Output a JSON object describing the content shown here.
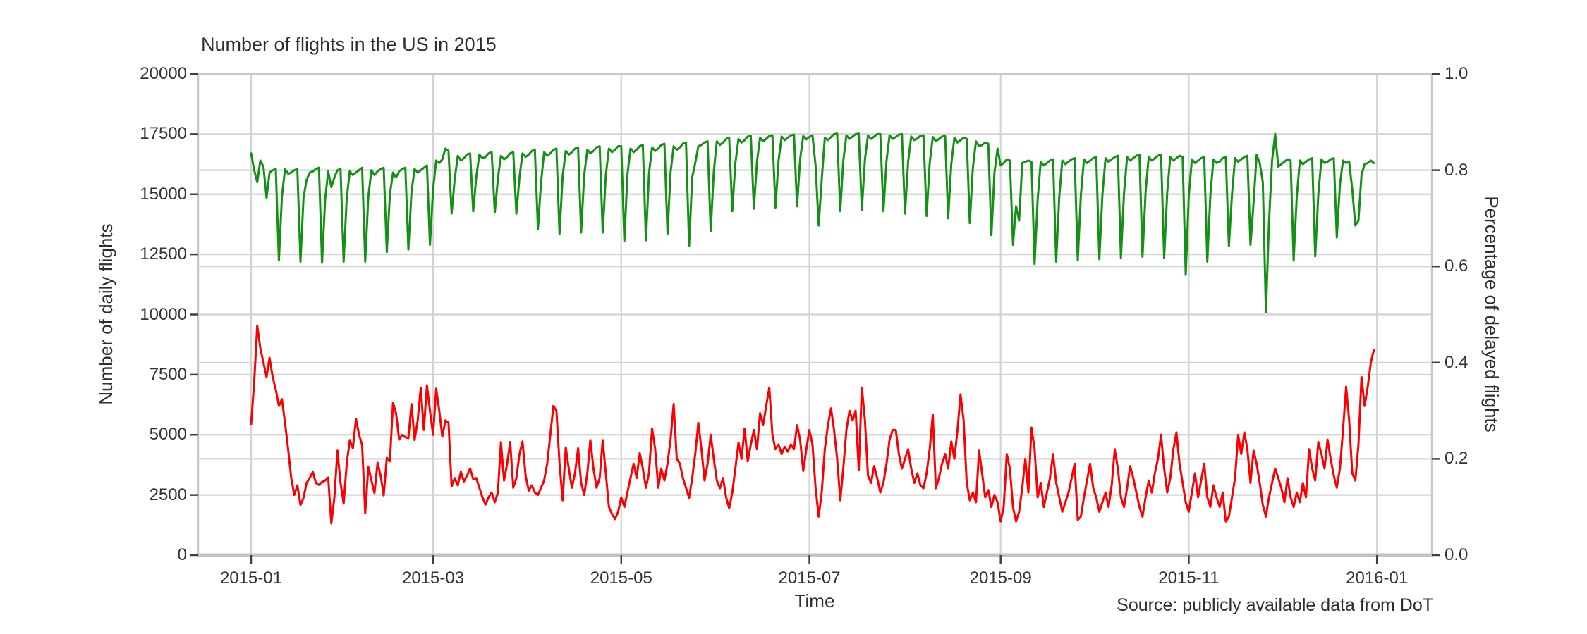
{
  "figure": {
    "title": "Number of flights in the US in 2015",
    "x_axis_label": "Time",
    "y_axis_left_label": "Number of daily flights",
    "y_axis_right_label": "Percentage of delayed flights",
    "source_note": "Source: publicly available data from DoT"
  },
  "colors": {
    "flights_line": "#149114",
    "delays_line": "#fb0000",
    "grid": "#d3d3d3",
    "spine": "#c8c8c8",
    "bottom_spine": "#c2c2c2",
    "tick_mark": "#404040",
    "text": "#2e2e2e"
  },
  "chart_data": {
    "type": "line",
    "title": "Number of flights in the US in 2015",
    "xlabel": "Time",
    "ylabel_left": "Number of daily flights",
    "ylabel_right": "Percentage of delayed flights",
    "x_unit": "day of 2015 (Jan 1 = day 0, daily samples)",
    "grid": true,
    "legend": "none",
    "ylim_left": [
      0,
      20000
    ],
    "ylim_right": [
      0.0,
      1.0
    ],
    "y_left_ticks": [
      0,
      2500,
      5000,
      7500,
      10000,
      12500,
      15000,
      17500,
      20000
    ],
    "y_right_ticks": [
      "0.0",
      "0.2",
      "0.4",
      "0.6",
      "0.8",
      "1.0"
    ],
    "x_ticks": [
      {
        "label": "2015-01",
        "day": 0
      },
      {
        "label": "2015-03",
        "day": 59
      },
      {
        "label": "2015-05",
        "day": 120
      },
      {
        "label": "2015-07",
        "day": 181
      },
      {
        "label": "2015-09",
        "day": 243
      },
      {
        "label": "2015-11",
        "day": 304
      },
      {
        "label": "2016-01",
        "day": 365
      }
    ],
    "series": [
      {
        "name": "Number of daily flights",
        "axis": "left",
        "color": "#149114",
        "values": [
          16700,
          16000,
          15500,
          16400,
          16150,
          14850,
          15900,
          16000,
          16050,
          12250,
          14900,
          16050,
          15850,
          15900,
          16000,
          16050,
          12200,
          14850,
          15600,
          15900,
          15950,
          16050,
          16100,
          12150,
          14800,
          15950,
          15300,
          15700,
          16000,
          16050,
          12200,
          14850,
          15950,
          15800,
          15900,
          16000,
          16100,
          12200,
          14900,
          16000,
          15800,
          15950,
          16050,
          16100,
          12600,
          15000,
          15900,
          15700,
          15950,
          16050,
          16100,
          12700,
          15100,
          16050,
          15900,
          16000,
          16100,
          16200,
          12900,
          15200,
          16400,
          16300,
          16450,
          16900,
          16800,
          14200,
          15600,
          16600,
          16400,
          16500,
          16650,
          16700,
          14290,
          15700,
          16650,
          16500,
          16550,
          16700,
          16750,
          14240,
          15650,
          16600,
          16450,
          16550,
          16700,
          16750,
          14190,
          15700,
          16700,
          16550,
          16650,
          16800,
          16850,
          13560,
          15500,
          16750,
          16600,
          16700,
          16850,
          16900,
          13360,
          15750,
          16800,
          16650,
          16750,
          16900,
          16950,
          13410,
          15800,
          16850,
          16700,
          16800,
          16950,
          17000,
          13410,
          15800,
          16900,
          16750,
          16850,
          17000,
          17000,
          13060,
          15800,
          16900,
          16750,
          16850,
          17000,
          17050,
          13090,
          15850,
          16950,
          16800,
          16900,
          17050,
          17100,
          13360,
          15900,
          17000,
          16850,
          16950,
          17100,
          17150,
          12870,
          15700,
          16300,
          17000,
          17050,
          17150,
          17200,
          13460,
          15950,
          17200,
          17050,
          17150,
          17300,
          17350,
          14300,
          16300,
          17300,
          17150,
          17250,
          17400,
          17420,
          14400,
          16350,
          17350,
          17200,
          17300,
          17430,
          17450,
          14450,
          16400,
          17400,
          17250,
          17350,
          17450,
          17480,
          14500,
          16450,
          17420,
          17280,
          17380,
          17450,
          16200,
          13700,
          15600,
          17350,
          17250,
          17380,
          17500,
          17520,
          14300,
          16400,
          17450,
          17300,
          17400,
          17500,
          17520,
          14350,
          16450,
          17450,
          17300,
          17400,
          17500,
          17500,
          14300,
          16400,
          17450,
          17300,
          17380,
          17480,
          17500,
          14200,
          16350,
          17400,
          17250,
          17320,
          17430,
          17450,
          14100,
          16300,
          17380,
          17200,
          17300,
          17400,
          17420,
          14000,
          16250,
          17350,
          17150,
          17250,
          17350,
          17300,
          13800,
          16100,
          17200,
          17000,
          17050,
          17150,
          17100,
          13300,
          15900,
          16900,
          16200,
          16300,
          16450,
          16400,
          12900,
          14500,
          13900,
          16300,
          16350,
          16400,
          16350,
          12100,
          14800,
          16350,
          16200,
          16300,
          16400,
          16450,
          12200,
          14900,
          16400,
          16250,
          16350,
          16450,
          16500,
          12250,
          14950,
          16450,
          16300,
          16400,
          16500,
          16550,
          12300,
          15000,
          16500,
          16350,
          16450,
          16550,
          16600,
          12350,
          15050,
          16550,
          16400,
          16500,
          16600,
          16650,
          12400,
          15100,
          16550,
          16400,
          16500,
          16600,
          16650,
          12350,
          15050,
          16550,
          16400,
          16500,
          16600,
          16550,
          11650,
          14900,
          16450,
          16300,
          16400,
          16500,
          16550,
          12200,
          14950,
          16450,
          16300,
          16350,
          16500,
          16550,
          12850,
          15000,
          16500,
          16350,
          16450,
          16550,
          16600,
          12900,
          14650,
          16630,
          16300,
          15500,
          10100,
          13800,
          16400,
          17510,
          16150,
          16250,
          16350,
          16450,
          16400,
          12240,
          14900,
          16400,
          16250,
          16350,
          16450,
          16500,
          12420,
          15000,
          16450,
          16300,
          16350,
          16450,
          16500,
          13200,
          15400,
          16400,
          16300,
          16350,
          15200,
          13700,
          13900,
          15800,
          16250,
          16300,
          16400,
          16300
        ]
      },
      {
        "name": "Percentage of delayed flights",
        "axis": "right",
        "color": "#fb0000",
        "values": [
          0.272,
          0.36,
          0.477,
          0.43,
          0.4,
          0.37,
          0.41,
          0.37,
          0.344,
          0.31,
          0.324,
          0.275,
          0.22,
          0.16,
          0.125,
          0.145,
          0.104,
          0.119,
          0.15,
          0.16,
          0.173,
          0.15,
          0.146,
          0.152,
          0.155,
          0.161,
          0.066,
          0.12,
          0.217,
          0.15,
          0.107,
          0.19,
          0.239,
          0.222,
          0.283,
          0.25,
          0.229,
          0.087,
          0.183,
          0.155,
          0.129,
          0.192,
          0.165,
          0.124,
          0.202,
          0.195,
          0.317,
          0.295,
          0.24,
          0.25,
          0.245,
          0.243,
          0.314,
          0.239,
          0.28,
          0.348,
          0.26,
          0.353,
          0.3,
          0.25,
          0.346,
          0.3,
          0.246,
          0.28,
          0.275,
          0.143,
          0.16,
          0.145,
          0.173,
          0.153,
          0.165,
          0.18,
          0.158,
          0.16,
          0.14,
          0.12,
          0.105,
          0.12,
          0.13,
          0.11,
          0.13,
          0.235,
          0.155,
          0.19,
          0.235,
          0.14,
          0.16,
          0.21,
          0.236,
          0.165,
          0.134,
          0.145,
          0.13,
          0.125,
          0.14,
          0.155,
          0.19,
          0.25,
          0.31,
          0.3,
          0.19,
          0.114,
          0.224,
          0.18,
          0.14,
          0.17,
          0.222,
          0.15,
          0.125,
          0.17,
          0.239,
          0.18,
          0.14,
          0.16,
          0.239,
          0.17,
          0.1,
          0.085,
          0.075,
          0.09,
          0.12,
          0.1,
          0.13,
          0.16,
          0.19,
          0.16,
          0.212,
          0.18,
          0.14,
          0.17,
          0.263,
          0.22,
          0.14,
          0.18,
          0.155,
          0.19,
          0.24,
          0.314,
          0.2,
          0.19,
          0.16,
          0.14,
          0.119,
          0.16,
          0.21,
          0.275,
          0.22,
          0.155,
          0.19,
          0.25,
          0.2,
          0.155,
          0.139,
          0.16,
          0.12,
          0.097,
          0.13,
          0.18,
          0.234,
          0.2,
          0.263,
          0.195,
          0.23,
          0.26,
          0.22,
          0.295,
          0.27,
          0.31,
          0.348,
          0.25,
          0.22,
          0.23,
          0.21,
          0.225,
          0.215,
          0.23,
          0.22,
          0.27,
          0.24,
          0.175,
          0.22,
          0.26,
          0.23,
          0.14,
          0.08,
          0.13,
          0.22,
          0.27,
          0.305,
          0.26,
          0.2,
          0.114,
          0.18,
          0.26,
          0.3,
          0.28,
          0.3,
          0.177,
          0.348,
          0.28,
          0.165,
          0.15,
          0.185,
          0.16,
          0.13,
          0.15,
          0.19,
          0.24,
          0.26,
          0.26,
          0.21,
          0.18,
          0.2,
          0.22,
          0.18,
          0.15,
          0.17,
          0.145,
          0.139,
          0.17,
          0.22,
          0.292,
          0.139,
          0.16,
          0.19,
          0.21,
          0.18,
          0.236,
          0.2,
          0.26,
          0.334,
          0.28,
          0.15,
          0.114,
          0.13,
          0.11,
          0.217,
          0.17,
          0.12,
          0.135,
          0.1,
          0.125,
          0.11,
          0.07,
          0.1,
          0.21,
          0.18,
          0.1,
          0.07,
          0.09,
          0.14,
          0.2,
          0.13,
          0.265,
          0.22,
          0.12,
          0.15,
          0.1,
          0.13,
          0.16,
          0.21,
          0.15,
          0.12,
          0.09,
          0.11,
          0.13,
          0.16,
          0.19,
          0.073,
          0.08,
          0.12,
          0.155,
          0.19,
          0.14,
          0.12,
          0.09,
          0.11,
          0.13,
          0.1,
          0.145,
          0.22,
          0.18,
          0.12,
          0.1,
          0.14,
          0.185,
          0.16,
          0.13,
          0.1,
          0.08,
          0.12,
          0.155,
          0.13,
          0.17,
          0.2,
          0.25,
          0.18,
          0.13,
          0.16,
          0.22,
          0.255,
          0.19,
          0.15,
          0.11,
          0.09,
          0.13,
          0.17,
          0.12,
          0.155,
          0.19,
          0.12,
          0.1,
          0.145,
          0.12,
          0.1,
          0.13,
          0.07,
          0.08,
          0.12,
          0.16,
          0.25,
          0.21,
          0.255,
          0.22,
          0.15,
          0.217,
          0.19,
          0.15,
          0.104,
          0.08,
          0.12,
          0.15,
          0.18,
          0.16,
          0.14,
          0.11,
          0.16,
          0.12,
          0.1,
          0.13,
          0.11,
          0.15,
          0.12,
          0.22,
          0.18,
          0.155,
          0.235,
          0.21,
          0.18,
          0.24,
          0.2,
          0.165,
          0.14,
          0.18,
          0.26,
          0.35,
          0.28,
          0.17,
          0.155,
          0.23,
          0.37,
          0.31,
          0.35,
          0.4,
          0.426
        ]
      }
    ]
  }
}
